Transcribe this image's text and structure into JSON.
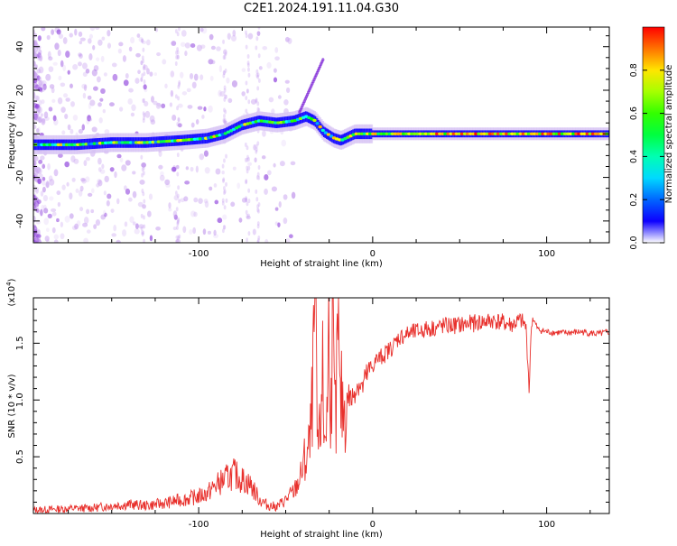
{
  "title": "C2E1.2024.191.11.04.G30",
  "chart_data": [
    {
      "type": "heatmap",
      "xlabel": "Height of straight line (km)",
      "ylabel": "Frequency (Hz)",
      "xlim": [
        -195,
        136
      ],
      "ylim": [
        -50,
        49
      ],
      "xticks": [
        -100,
        0,
        100
      ],
      "xtick_labels": [
        "-100",
        "0",
        "100"
      ],
      "yticks": [
        -40,
        -20,
        0,
        20,
        40
      ],
      "ytick_labels": [
        "-40",
        "-20",
        "0",
        "20",
        "40"
      ],
      "ridge": {
        "x": [
          -195,
          -170,
          -150,
          -130,
          -110,
          -95,
          -85,
          -75,
          -65,
          -55,
          -45,
          -38,
          -33,
          -28,
          -22,
          -18,
          -10,
          0,
          20,
          60,
          90,
          120,
          136
        ],
        "y": [
          -5,
          -5,
          -4,
          -4,
          -3,
          -2,
          0,
          4,
          6,
          5,
          6,
          8,
          6,
          1,
          -2,
          -3,
          0,
          0,
          0,
          0,
          0,
          0,
          0
        ]
      },
      "colorbar": {
        "label": "Normalized spectral amplitude",
        "range": [
          0,
          1
        ],
        "ticks": [
          0.0,
          0.2,
          0.4,
          0.6,
          0.8
        ],
        "tick_labels": [
          "0.0",
          "0.2",
          "0.4",
          "0.6",
          "0.8"
        ]
      },
      "grid": false
    },
    {
      "type": "line",
      "xlabel": "Height of straight line (km)",
      "ylabel": "SNR (10 * v/v)",
      "y_multiplier": "(x10",
      "y_multiplier_exp": "4",
      "y_multiplier_close": ")",
      "xlim": [
        -195,
        136
      ],
      "ylim": [
        0,
        1.9
      ],
      "xticks": [
        -100,
        0,
        100
      ],
      "xtick_labels": [
        "-100",
        "0",
        "100"
      ],
      "yticks": [
        0.5,
        1.0,
        1.5
      ],
      "ytick_labels": [
        "0.5",
        "1.0",
        "1.5"
      ],
      "series": [
        {
          "color": "#e8302c",
          "x": [
            -195,
            -180,
            -160,
            -150,
            -140,
            -130,
            -120,
            -110,
            -100,
            -95,
            -90,
            -85,
            -80,
            -75,
            -70,
            -65,
            -60,
            -55,
            -50,
            -45,
            -42,
            -40,
            -38,
            -36,
            -35,
            -34,
            -33,
            -32,
            -31,
            -30,
            -29,
            -28,
            -27,
            -26,
            -25,
            -24,
            -23,
            -22,
            -21,
            -20,
            -19,
            -18,
            -16,
            -14,
            -12,
            -10,
            -8,
            -6,
            -4,
            -2,
            0,
            2,
            5,
            8,
            12,
            15,
            20,
            25,
            30,
            40,
            50,
            60,
            70,
            80,
            85,
            88,
            89,
            90,
            91,
            92,
            95,
            100,
            110,
            120,
            130,
            136
          ],
          "y": [
            0.03,
            0.04,
            0.05,
            0.07,
            0.08,
            0.07,
            0.09,
            0.12,
            0.15,
            0.18,
            0.25,
            0.3,
            0.35,
            0.3,
            0.25,
            0.12,
            0.07,
            0.06,
            0.12,
            0.2,
            0.3,
            0.4,
            0.5,
            0.6,
            0.9,
            1.3,
            1.88,
            0.7,
            0.6,
            0.7,
            1.4,
            0.65,
            0.8,
            0.9,
            1.85,
            0.8,
            1.7,
            0.9,
            0.8,
            1.78,
            0.95,
            1.0,
            0.9,
            1.05,
            1.0,
            1.1,
            1.15,
            1.1,
            1.2,
            1.25,
            1.3,
            1.35,
            1.38,
            1.42,
            1.48,
            1.55,
            1.58,
            1.6,
            1.62,
            1.65,
            1.66,
            1.68,
            1.7,
            1.66,
            1.7,
            1.65,
            1.4,
            1.08,
            1.6,
            1.72,
            1.62,
            1.6,
            1.59,
            1.6,
            1.58,
            1.6
          ]
        }
      ],
      "grid": false
    }
  ]
}
